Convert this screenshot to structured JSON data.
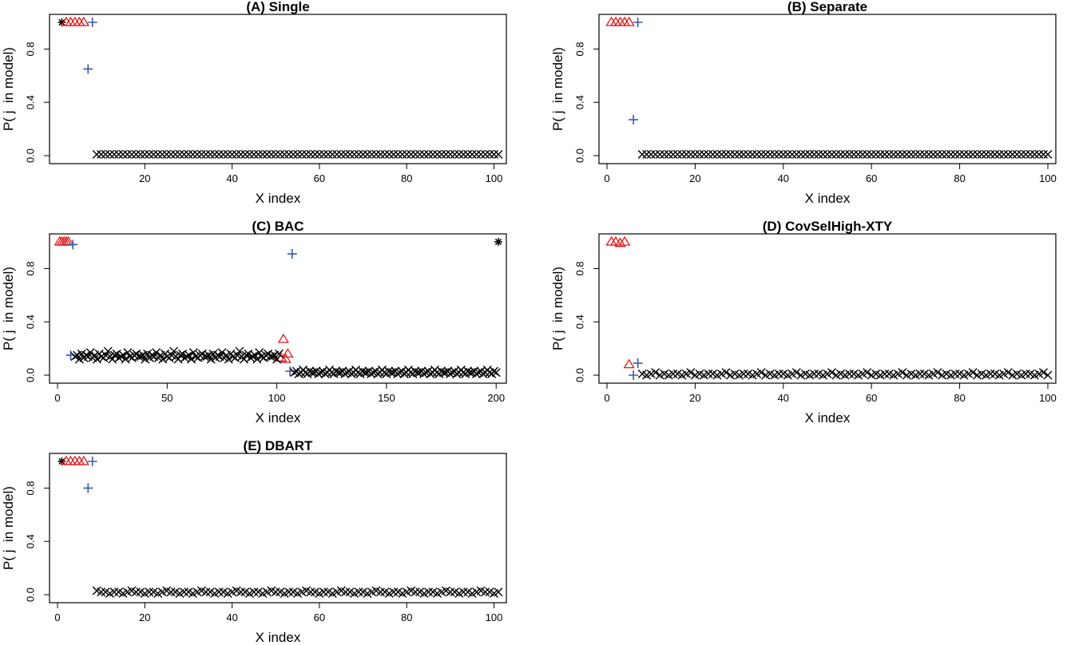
{
  "chart_data": [
    {
      "type": "scatter",
      "title": "(A) Single",
      "xlabel": "X index",
      "ylabel": "P( j  in model)",
      "xlim": [
        0,
        101
      ],
      "ylim": [
        0,
        1
      ],
      "xticks": [
        20,
        40,
        60,
        80,
        100
      ],
      "yticks": [
        0.0,
        0.4,
        0.8
      ],
      "ytick_labels": [
        "0.0",
        "0.4",
        "0.8"
      ],
      "series": [
        {
          "marker": "star",
          "color": "#000000",
          "points": [
            [
              1,
              1.0
            ]
          ]
        },
        {
          "marker": "triangle",
          "color": "#e41a1c",
          "points": [
            [
              2,
              1.0
            ],
            [
              3,
              1.0
            ],
            [
              4,
              1.0
            ],
            [
              5,
              1.0
            ],
            [
              6,
              1.0
            ]
          ]
        },
        {
          "marker": "plus",
          "color": "#3d5aa9",
          "points": [
            [
              7,
              0.65
            ],
            [
              8,
              1.0
            ]
          ]
        },
        {
          "marker": "x",
          "color": "#000000",
          "x_range": [
            9,
            101
          ],
          "y_values": [
            0.01
          ]
        }
      ]
    },
    {
      "type": "scatter",
      "title": "(B) Separate",
      "xlabel": "X index",
      "ylabel": "P( j  in model)",
      "xlim": [
        0,
        100
      ],
      "ylim": [
        0,
        1
      ],
      "xticks": [
        0,
        20,
        40,
        60,
        80,
        100
      ],
      "yticks": [
        0.0,
        0.4,
        0.8
      ],
      "ytick_labels": [
        "0.0",
        "0.4",
        "0.8"
      ],
      "series": [
        {
          "marker": "triangle",
          "color": "#e41a1c",
          "points": [
            [
              1,
              1.0
            ],
            [
              2,
              1.0
            ],
            [
              3,
              1.0
            ],
            [
              4,
              1.0
            ],
            [
              5,
              1.0
            ]
          ]
        },
        {
          "marker": "plus",
          "color": "#3d5aa9",
          "points": [
            [
              6,
              0.27
            ],
            [
              7,
              1.0
            ]
          ]
        },
        {
          "marker": "x",
          "color": "#000000",
          "x_range": [
            8,
            100
          ],
          "y_values": [
            0.01
          ]
        }
      ]
    },
    {
      "type": "scatter",
      "title": "(C) BAC",
      "xlabel": "X index",
      "ylabel": "P( j  in model)",
      "xlim": [
        0,
        201
      ],
      "ylim": [
        0,
        1
      ],
      "xticks": [
        0,
        50,
        100,
        150,
        200
      ],
      "yticks": [
        0.0,
        0.4,
        0.8
      ],
      "ytick_labels": [
        "0.0",
        "0.4",
        "0.8"
      ],
      "series": [
        {
          "marker": "triangle",
          "color": "#e41a1c",
          "points": [
            [
              1,
              1.0
            ],
            [
              2,
              1.0
            ],
            [
              3,
              1.0
            ],
            [
              4,
              1.0
            ],
            [
              5,
              1.0
            ],
            [
              102,
              0.13
            ],
            [
              103,
              0.27
            ],
            [
              104,
              0.12
            ],
            [
              105,
              0.16
            ]
          ]
        },
        {
          "marker": "plus",
          "color": "#3d5aa9",
          "points": [
            [
              6,
              0.15
            ],
            [
              7,
              0.98
            ],
            [
              106,
              0.03
            ],
            [
              107,
              0.91
            ]
          ]
        },
        {
          "marker": "star",
          "color": "#000000",
          "points": [
            [
              201,
              1.0
            ]
          ]
        },
        {
          "marker": "x",
          "color": "#000000",
          "x_range": [
            8,
            101
          ],
          "y_values": [
            0.14,
            0.15,
            0.12,
            0.16,
            0.13,
            0.15,
            0.14,
            0.17,
            0.13,
            0.15,
            0.12,
            0.16,
            0.14,
            0.13,
            0.15,
            0.18,
            0.14,
            0.12,
            0.15,
            0.16,
            0.13,
            0.14,
            0.15,
            0.12,
            0.17,
            0.14,
            0.13,
            0.15,
            0.16,
            0.14
          ]
        },
        {
          "marker": "x",
          "color": "#000000",
          "x_range": [
            108,
            200
          ],
          "y_values": [
            0.02,
            0.03,
            0.01,
            0.02,
            0.04,
            0.02,
            0.01,
            0.03,
            0.02,
            0.02,
            0.03,
            0.01
          ]
        }
      ]
    },
    {
      "type": "scatter",
      "title": "(D) CovSelHigh-XTY",
      "xlabel": "X index",
      "ylabel": "P( j  in model)",
      "xlim": [
        0,
        100
      ],
      "ylim": [
        0,
        1
      ],
      "xticks": [
        0,
        20,
        40,
        60,
        80,
        100
      ],
      "yticks": [
        0.0,
        0.4,
        0.8
      ],
      "ytick_labels": [
        "0.0",
        "0.4",
        "0.8"
      ],
      "series": [
        {
          "marker": "triangle",
          "color": "#e41a1c",
          "points": [
            [
              1,
              1.0
            ],
            [
              2,
              1.0
            ],
            [
              3,
              0.99
            ],
            [
              4,
              1.0
            ],
            [
              5,
              0.08
            ]
          ]
        },
        {
          "marker": "plus",
          "color": "#3d5aa9",
          "points": [
            [
              6,
              0.0
            ],
            [
              7,
              0.09
            ]
          ]
        },
        {
          "marker": "x",
          "color": "#000000",
          "x_range": [
            8,
            100
          ],
          "y_values": [
            0.01,
            0.0,
            0.01,
            0.02,
            0.0,
            0.01,
            0.0,
            0.01
          ]
        }
      ]
    },
    {
      "type": "scatter",
      "title": "(E) DBART",
      "xlabel": "X index",
      "ylabel": "P( j  in model)",
      "xlim": [
        0,
        101
      ],
      "ylim": [
        0,
        1
      ],
      "xticks": [
        0,
        20,
        40,
        60,
        80,
        100
      ],
      "yticks": [
        0.0,
        0.4,
        0.8
      ],
      "ytick_labels": [
        "0.0",
        "0.4",
        "0.8"
      ],
      "series": [
        {
          "marker": "star",
          "color": "#000000",
          "points": [
            [
              1,
              1.0
            ]
          ]
        },
        {
          "marker": "triangle",
          "color": "#e41a1c",
          "points": [
            [
              2,
              1.0
            ],
            [
              3,
              1.0
            ],
            [
              4,
              1.0
            ],
            [
              5,
              1.0
            ],
            [
              6,
              1.0
            ]
          ]
        },
        {
          "marker": "plus",
          "color": "#3d5aa9",
          "points": [
            [
              7,
              0.8
            ],
            [
              8,
              1.0
            ]
          ]
        },
        {
          "marker": "x",
          "color": "#000000",
          "x_range": [
            9,
            101
          ],
          "y_values": [
            0.03,
            0.02,
            0.02,
            0.01,
            0.02,
            0.02,
            0.01,
            0.02
          ]
        }
      ]
    }
  ]
}
